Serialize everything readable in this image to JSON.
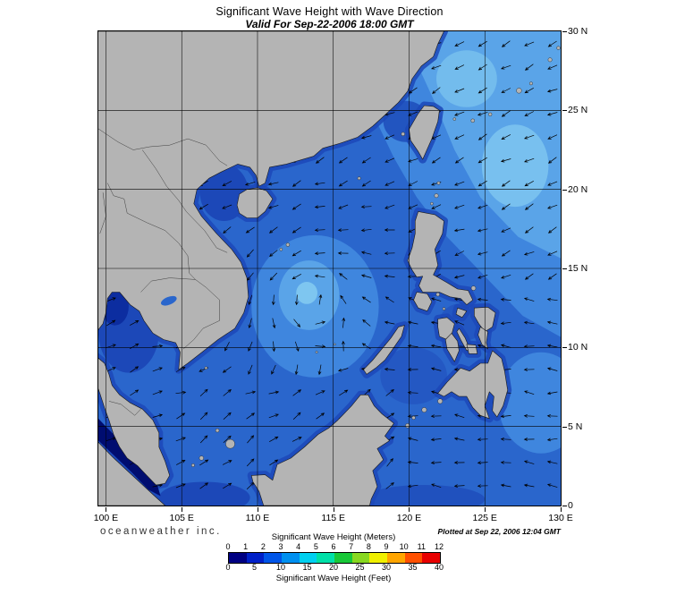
{
  "header": {
    "title": "Significant Wave Height with Wave Direction",
    "subtitle": "Valid For Sep-22-2006 18:00 GMT"
  },
  "map": {
    "lat_labels": [
      "30 N",
      "25 N",
      "20 N",
      "15 N",
      "10 N",
      "5 N",
      "0"
    ],
    "lon_labels": [
      "100 E",
      "105 E",
      "110 E",
      "115 E",
      "120 E",
      "125 E",
      "130 E"
    ],
    "lon_min": 99.5,
    "lon_max": 130,
    "lat_min": 0,
    "lat_max": 30,
    "grid_step_deg": 5
  },
  "footer": {
    "brand": "oceanweather inc.",
    "plotted": "Plotted at Sep 22, 2006 12:04 GMT"
  },
  "legend": {
    "meters_title": "Significant Wave Height (Meters)",
    "feet_title": "Significant Wave Height (Feet)",
    "meters_ticks": [
      "0",
      "1",
      "2",
      "3",
      "4",
      "5",
      "6",
      "7",
      "8",
      "9",
      "10",
      "11",
      "12"
    ],
    "feet_ticks": [
      "0",
      "5",
      "10",
      "15",
      "20",
      "25",
      "30",
      "35",
      "40"
    ],
    "colors": [
      "#000082",
      "#0020c8",
      "#0055e8",
      "#0090f0",
      "#00d0f0",
      "#00e0a8",
      "#18c838",
      "#88d820",
      "#f0f000",
      "#ffa500",
      "#ff5000",
      "#e80000"
    ]
  },
  "colors": {
    "land": "#b4b4b4",
    "coastline": "#1a1a1a",
    "ocean_base": "#2a66cc",
    "ocean_light": "#3f86de",
    "ocean_lighter": "#5aa4e8",
    "ocean_lightest": "#7ec6f0",
    "ocean_dark": "#1c48b8",
    "ocean_darker": "#0c2da0",
    "ocean_darkest": "#000d70",
    "grid": "#000000",
    "arrow": "#000000",
    "border_lines": "#2a2a2a",
    "frame": "#000000"
  }
}
